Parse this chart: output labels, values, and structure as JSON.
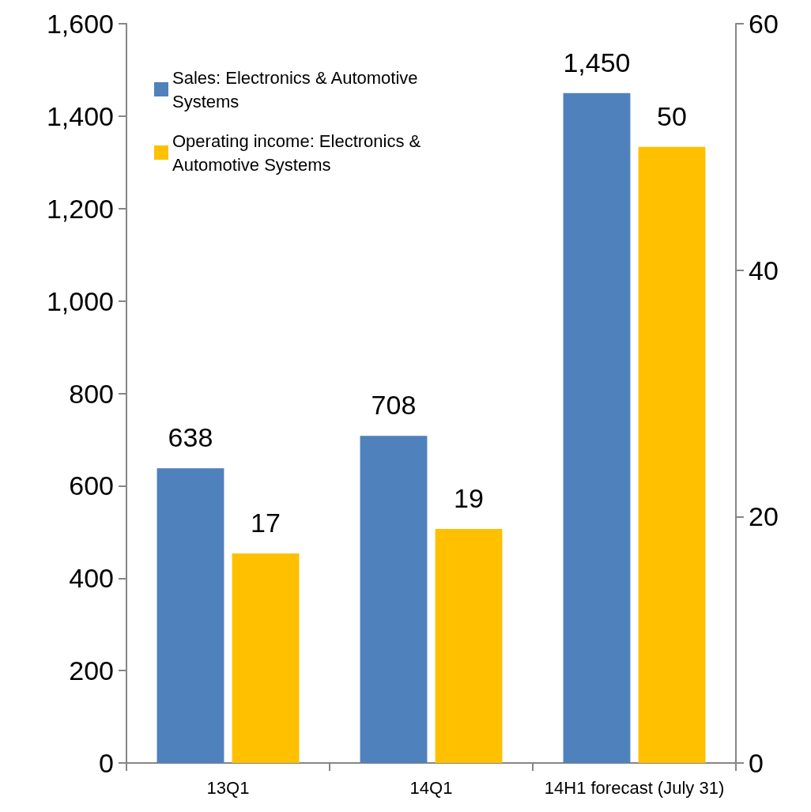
{
  "chart_data": {
    "type": "bar",
    "categories": [
      "13Q1",
      "14Q1",
      "14H1 forecast (July 31)"
    ],
    "series": [
      {
        "name": "Sales: Electronics & Automotive Systems",
        "color": "#4f81bd",
        "values": [
          638,
          708,
          1450
        ],
        "value_labels": [
          "638",
          "708",
          "1,450"
        ]
      },
      {
        "name": "Operating income: Electronics & Automotive Systems",
        "color": "#ffc000",
        "values": [
          17,
          19,
          50
        ],
        "value_labels": [
          "17",
          "19",
          "50"
        ],
        "axis": "y2"
      }
    ],
    "ylim": [
      0,
      1600
    ],
    "yticks": [
      0,
      200,
      400,
      600,
      800,
      {
        "value": 1000,
        "label": "1,000"
      },
      {
        "value": 1200,
        "label": "1,200"
      },
      {
        "value": 1400,
        "label": "1,400"
      },
      {
        "value": 1600,
        "label": "1,600"
      }
    ],
    "y2lim": [
      0,
      60
    ],
    "y2ticks": [
      0,
      20,
      40,
      60
    ],
    "grid": false,
    "legend": "top left"
  }
}
